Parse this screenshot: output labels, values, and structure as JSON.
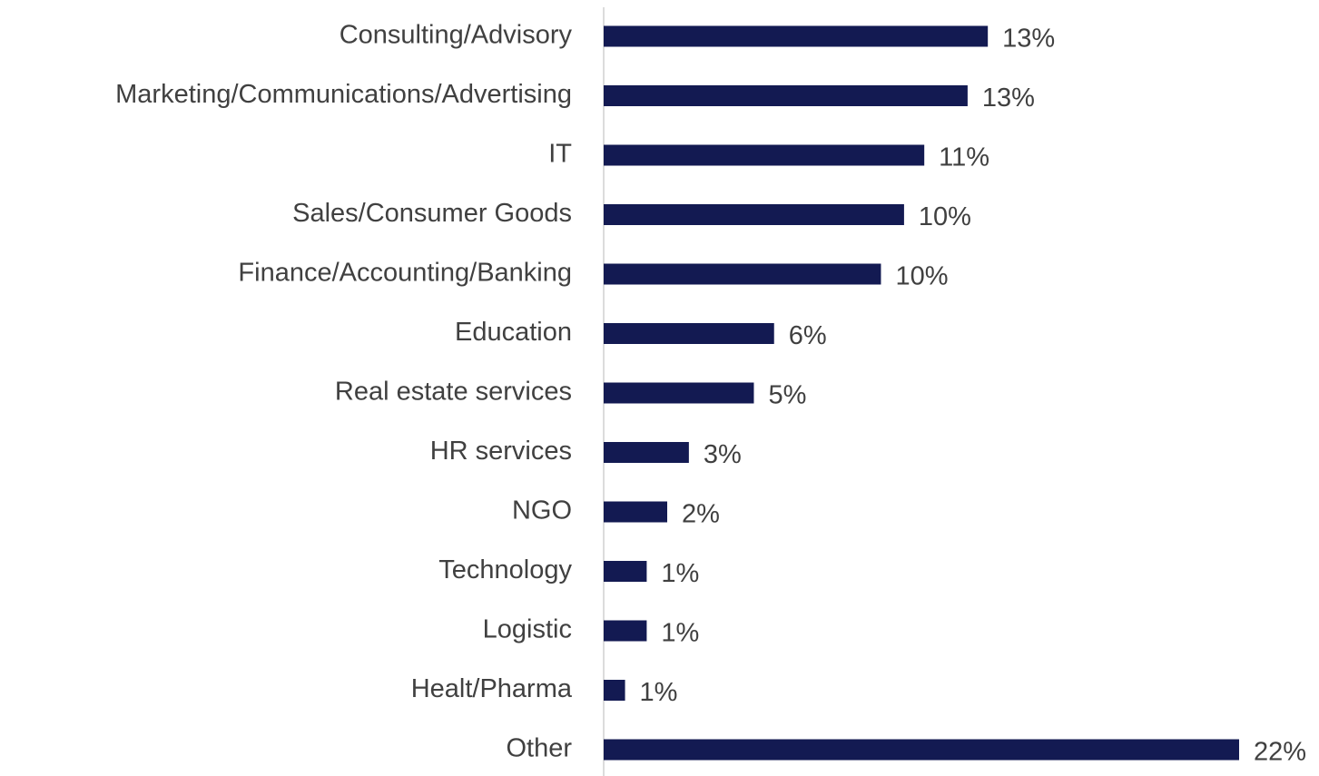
{
  "chart_data": {
    "type": "hbar",
    "categories": [
      "Consulting/Advisory",
      "Marketing/Communications/Advertising",
      "IT",
      "Sales/Consumer Goods",
      "Finance/Accounting/Banking",
      "Education",
      "Real estate services",
      "HR services",
      "NGO",
      "Technology",
      "Logistic",
      "Healt/Pharma",
      "Other"
    ],
    "values": [
      13.3,
      12.6,
      11.1,
      10.4,
      9.6,
      5.9,
      5.2,
      2.95,
      2.2,
      1.49,
      1.49,
      0.74,
      22
    ],
    "value_labels": [
      "13%",
      "13%",
      "11%",
      "10%",
      "10%",
      "6%",
      "5%",
      "3%",
      "2%",
      "1%",
      "1%",
      "1%",
      "22%"
    ],
    "color": "#131a52",
    "xlim": [
      0,
      22
    ]
  }
}
